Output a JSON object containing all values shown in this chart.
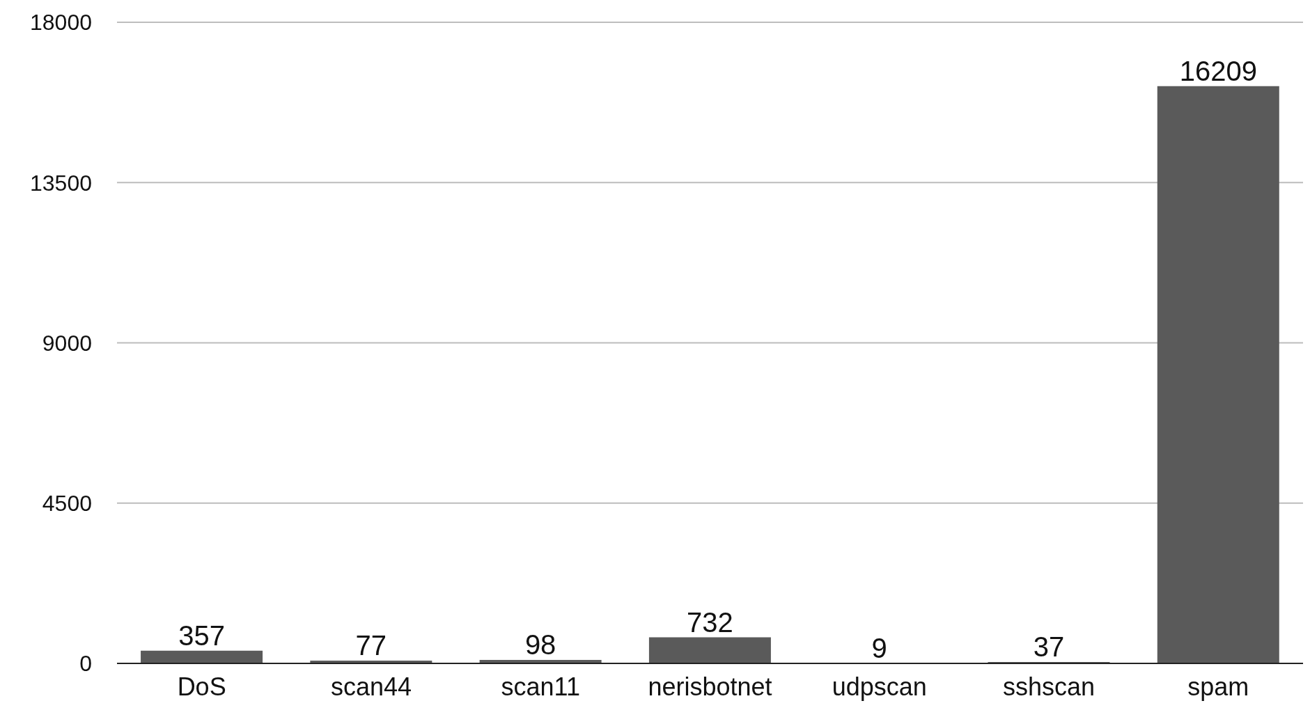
{
  "chart_data": {
    "type": "bar",
    "categories": [
      "DoS",
      "scan44",
      "scan11",
      "nerisbotnet",
      "udpscan",
      "sshscan",
      "spam"
    ],
    "values": [
      357,
      77,
      98,
      732,
      9,
      37,
      16209
    ],
    "color": "#5a5a5a",
    "ylim": [
      0,
      18000
    ],
    "yticks": [
      0,
      4500,
      9000,
      13500,
      18000
    ],
    "grid": "y",
    "data_labels": true
  }
}
